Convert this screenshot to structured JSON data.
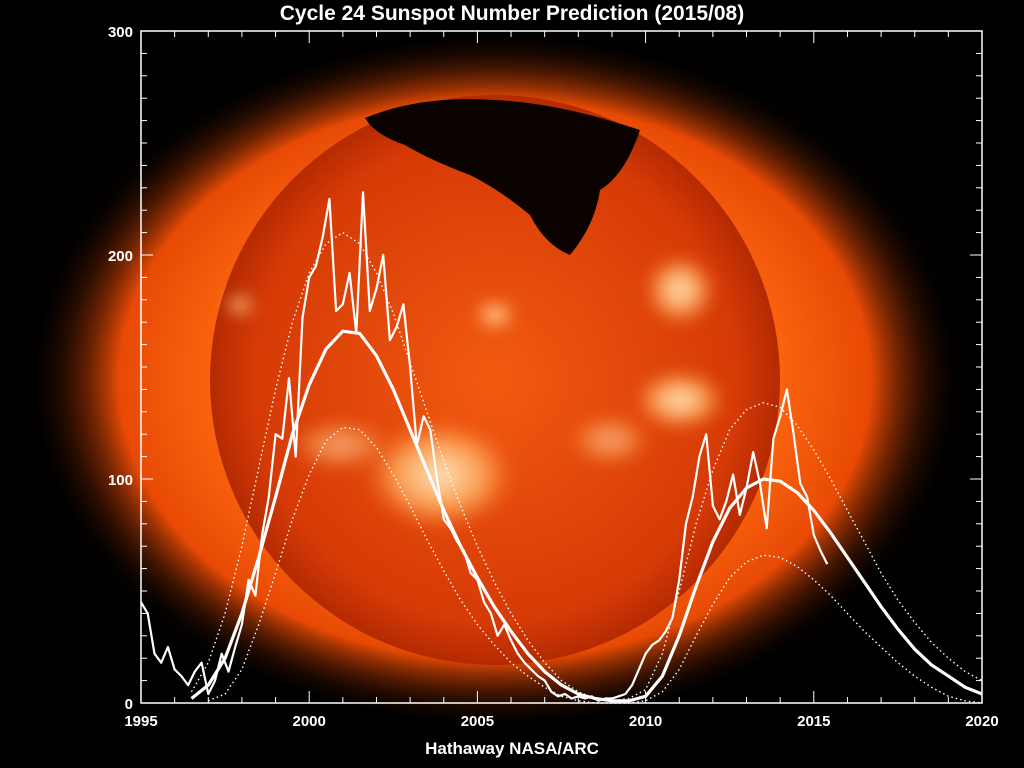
{
  "title": "Cycle 24 Sunspot Number Prediction (2015/08)",
  "credit": "Hathaway  NASA/ARC",
  "colors": {
    "background": "#000000",
    "axes": "#ffffff",
    "data": "#ffffff",
    "sun_core": "#e23c06",
    "sun_glow": "#ff7a1a",
    "sun_bright": "#ffe2b0"
  },
  "chart_data": {
    "type": "line",
    "title": "Cycle 24 Sunspot Number Prediction (2015/08)",
    "xlabel": "",
    "ylabel": "",
    "xlim": [
      1995,
      2020
    ],
    "ylim": [
      0,
      300
    ],
    "x_ticks": [
      1995,
      2000,
      2005,
      2010,
      2015,
      2020
    ],
    "y_ticks": [
      0,
      100,
      200,
      300
    ],
    "grid": false,
    "legend": "none",
    "series": [
      {
        "style": "jagged monthly",
        "x": [
          1995.0,
          1995.2,
          1995.4,
          1995.6,
          1995.8,
          1996.0,
          1996.2,
          1996.4,
          1996.6,
          1996.8,
          1997.0,
          1997.2,
          1997.4,
          1997.6,
          1997.8,
          1998.0,
          1998.2,
          1998.4,
          1998.6,
          1998.8,
          1999.0,
          1999.2,
          1999.4,
          1999.6,
          1999.8,
          2000.0,
          2000.2,
          2000.4,
          2000.6,
          2000.8,
          2001.0,
          2001.2,
          2001.4,
          2001.6,
          2001.8,
          2002.0,
          2002.2,
          2002.4,
          2002.6,
          2002.8,
          2003.0,
          2003.2,
          2003.4,
          2003.6,
          2003.8,
          2004.0,
          2004.2,
          2004.4,
          2004.6,
          2004.8,
          2005.0,
          2005.2,
          2005.4,
          2005.6,
          2005.8,
          2006.0,
          2006.2,
          2006.4,
          2006.6,
          2006.8,
          2007.0,
          2007.2,
          2007.4,
          2007.6,
          2007.8,
          2008.0,
          2008.2,
          2008.4,
          2008.6,
          2008.8,
          2009.0,
          2009.2,
          2009.4,
          2009.6,
          2009.8,
          2010.0,
          2010.2,
          2010.4,
          2010.6,
          2010.8,
          2011.0,
          2011.2,
          2011.4,
          2011.6,
          2011.8,
          2012.0,
          2012.2,
          2012.4,
          2012.6,
          2012.8,
          2013.0,
          2013.2,
          2013.4,
          2013.6,
          2013.8,
          2014.0,
          2014.2,
          2014.4,
          2014.6,
          2014.8,
          2015.0,
          2015.2,
          2015.4
        ],
        "y": [
          45,
          40,
          22,
          18,
          25,
          15,
          12,
          8,
          14,
          18,
          4,
          10,
          22,
          14,
          25,
          35,
          55,
          48,
          75,
          92,
          120,
          118,
          145,
          110,
          172,
          190,
          195,
          208,
          225,
          175,
          178,
          192,
          165,
          228,
          175,
          185,
          200,
          162,
          168,
          178,
          150,
          115,
          128,
          122,
          100,
          82,
          78,
          72,
          68,
          58,
          55,
          45,
          40,
          30,
          35,
          28,
          22,
          18,
          15,
          12,
          10,
          5,
          3,
          4,
          2,
          3,
          2,
          3,
          1,
          2,
          2,
          3,
          4,
          8,
          15,
          22,
          26,
          28,
          32,
          38,
          55,
          80,
          92,
          110,
          120,
          88,
          82,
          90,
          102,
          84,
          96,
          112,
          98,
          78,
          118,
          128,
          140,
          120,
          98,
          92,
          75,
          68,
          62
        ]
      },
      {
        "style": "smooth predicted",
        "x": [
          1996.5,
          1997.0,
          1997.5,
          1998.0,
          1998.5,
          1999.0,
          1999.5,
          2000.0,
          2000.5,
          2001.0,
          2001.5,
          2002.0,
          2002.5,
          2003.0,
          2003.5,
          2004.0,
          2004.5,
          2005.0,
          2005.5,
          2006.0,
          2006.5,
          2007.0,
          2007.5,
          2008.0,
          2008.5,
          2009.0,
          2009.5,
          2010.0,
          2010.5,
          2011.0,
          2011.5,
          2012.0,
          2012.5,
          2013.0,
          2013.5,
          2014.0,
          2014.5,
          2015.0,
          2015.5,
          2016.0,
          2016.5,
          2017.0,
          2017.5,
          2018.0,
          2018.5,
          2019.0,
          2019.5,
          2020.0
        ],
        "y": [
          2,
          8,
          20,
          40,
          65,
          92,
          120,
          142,
          158,
          166,
          165,
          155,
          140,
          122,
          104,
          86,
          70,
          56,
          43,
          32,
          22,
          14,
          8,
          4,
          2,
          1,
          1,
          3,
          12,
          30,
          52,
          72,
          87,
          96,
          100,
          99,
          94,
          86,
          76,
          65,
          54,
          43,
          33,
          24,
          17,
          12,
          7,
          4
        ]
      },
      {
        "style": "upper bound (dotted)",
        "x": [
          1996.5,
          1997.0,
          1997.5,
          1998.0,
          1998.5,
          1999.0,
          1999.5,
          2000.0,
          2000.5,
          2001.0,
          2001.5,
          2002.0,
          2002.5,
          2003.0,
          2003.5,
          2004.0,
          2004.5,
          2005.0,
          2005.5,
          2006.0,
          2006.5,
          2007.0,
          2007.5,
          2008.0,
          2008.5,
          2009.0,
          2009.5,
          2010.0,
          2010.5,
          2011.0,
          2011.5,
          2012.0,
          2012.5,
          2013.0,
          2013.5,
          2014.0,
          2014.5,
          2015.0,
          2015.5,
          2016.0,
          2016.5,
          2017.0,
          2017.5,
          2018.0,
          2018.5,
          2019.0,
          2019.5,
          2020.0
        ],
        "y": [
          5,
          18,
          40,
          70,
          105,
          140,
          170,
          192,
          205,
          210,
          205,
          192,
          174,
          152,
          130,
          108,
          88,
          70,
          54,
          40,
          28,
          18,
          10,
          5,
          2,
          1,
          2,
          6,
          22,
          50,
          80,
          104,
          122,
          131,
          134,
          132,
          124,
          113,
          100,
          86,
          72,
          58,
          46,
          36,
          27,
          20,
          14,
          10
        ]
      },
      {
        "style": "lower bound (dotted)",
        "x": [
          1997.0,
          1997.5,
          1998.0,
          1998.5,
          1999.0,
          1999.5,
          2000.0,
          2000.5,
          2001.0,
          2001.5,
          2002.0,
          2002.5,
          2003.0,
          2003.5,
          2004.0,
          2004.5,
          2005.0,
          2005.5,
          2006.0,
          2006.5,
          2007.0,
          2007.5,
          2008.0,
          2008.5,
          2009.0,
          2009.5,
          2010.0,
          2010.5,
          2011.0,
          2011.5,
          2012.0,
          2012.5,
          2013.0,
          2013.5,
          2014.0,
          2014.5,
          2015.0,
          2015.5,
          2016.0,
          2016.5,
          2017.0,
          2017.5,
          2018.0,
          2018.5,
          2019.0,
          2019.5,
          2020.0
        ],
        "y": [
          1,
          4,
          15,
          35,
          58,
          82,
          102,
          117,
          123,
          122,
          114,
          102,
          88,
          73,
          59,
          46,
          35,
          26,
          18,
          12,
          7,
          3,
          1,
          0,
          0,
          0,
          1,
          5,
          15,
          30,
          44,
          56,
          63,
          66,
          65,
          61,
          55,
          48,
          40,
          32,
          25,
          18,
          12,
          7,
          3,
          1,
          0
        ]
      }
    ]
  }
}
